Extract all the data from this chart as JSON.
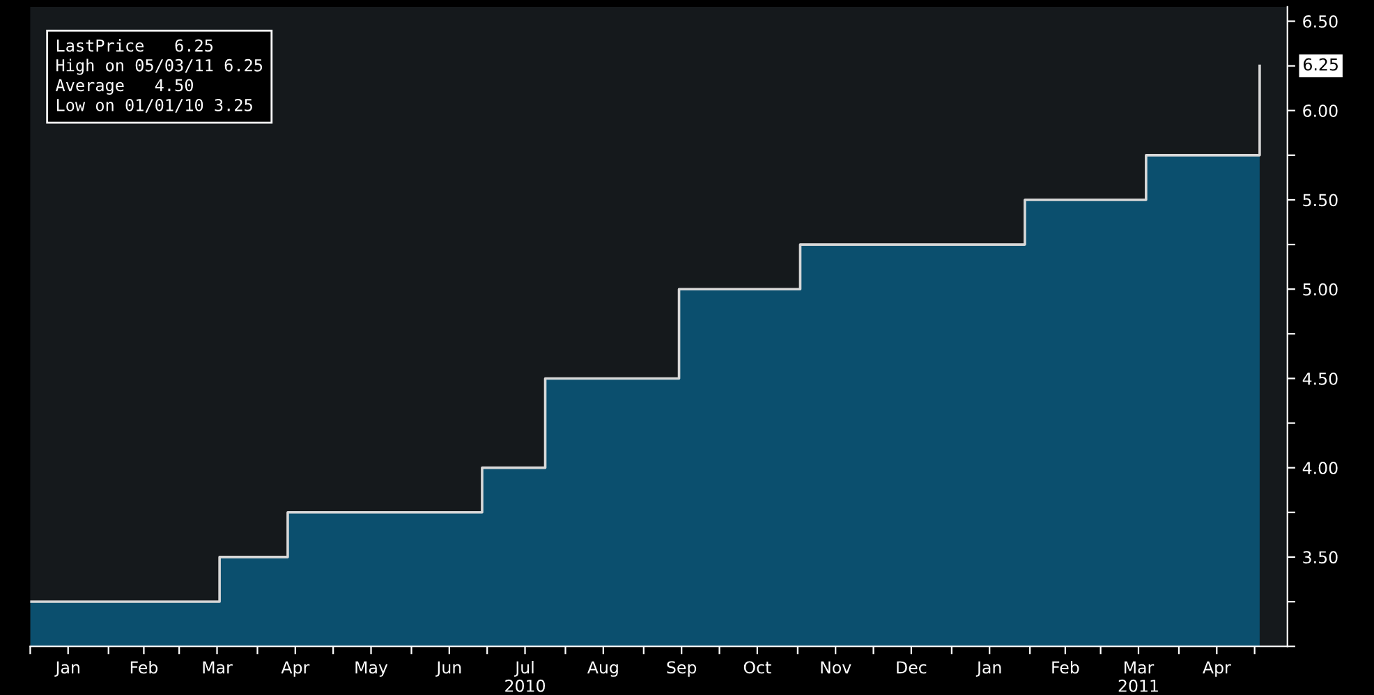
{
  "chart_data": {
    "type": "area",
    "x": [
      "2010-01-01",
      "2010-03-17",
      "2010-03-17",
      "2010-04-13",
      "2010-04-13",
      "2010-06-29",
      "2010-06-29",
      "2010-07-24",
      "2010-07-24",
      "2010-09-15",
      "2010-09-15",
      "2010-11-02",
      "2010-11-02",
      "2011-01-30",
      "2011-01-30",
      "2011-03-19",
      "2011-03-19",
      "2011-05-03",
      "2011-05-03"
    ],
    "series": [
      {
        "color": "#d8d8d8",
        "values": [
          3.25,
          3.25,
          3.5,
          3.5,
          3.75,
          3.75,
          4.0,
          4.0,
          4.5,
          4.5,
          5.0,
          5.0,
          5.25,
          5.25,
          5.5,
          5.5,
          5.75,
          5.75,
          6.25
        ]
      }
    ],
    "xlim": [
      "2010-01-01",
      "2011-05-14"
    ],
    "xticks": [
      {
        "value": "2010-01-01",
        "label": null
      },
      {
        "value": "2010-01-16",
        "label": "Jan"
      },
      {
        "value": "2010-02-01",
        "label": null
      },
      {
        "value": "2010-02-15",
        "label": "Feb"
      },
      {
        "value": "2010-03-01",
        "label": null
      },
      {
        "value": "2010-03-16",
        "label": "Mar"
      },
      {
        "value": "2010-04-01",
        "label": null
      },
      {
        "value": "2010-04-16",
        "label": "Apr"
      },
      {
        "value": "2010-05-01",
        "label": null
      },
      {
        "value": "2010-05-16",
        "label": "May"
      },
      {
        "value": "2010-06-01",
        "label": null
      },
      {
        "value": "2010-06-16",
        "label": "Jun"
      },
      {
        "value": "2010-07-01",
        "label": null
      },
      {
        "value": "2010-07-16",
        "label": "Jul\n2010"
      },
      {
        "value": "2010-08-01",
        "label": null
      },
      {
        "value": "2010-08-16",
        "label": "Aug"
      },
      {
        "value": "2010-09-01",
        "label": null
      },
      {
        "value": "2010-09-16",
        "label": "Sep"
      },
      {
        "value": "2010-10-01",
        "label": null
      },
      {
        "value": "2010-10-16",
        "label": "Oct"
      },
      {
        "value": "2010-11-01",
        "label": null
      },
      {
        "value": "2010-11-16",
        "label": "Nov"
      },
      {
        "value": "2010-12-01",
        "label": null
      },
      {
        "value": "2010-12-16",
        "label": "Dec"
      },
      {
        "value": "2011-01-01",
        "label": null
      },
      {
        "value": "2011-01-16",
        "label": "Jan"
      },
      {
        "value": "2011-02-01",
        "label": null
      },
      {
        "value": "2011-02-15",
        "label": "Feb"
      },
      {
        "value": "2011-03-01",
        "label": null
      },
      {
        "value": "2011-03-16",
        "label": "Mar\n2011"
      },
      {
        "value": "2011-04-01",
        "label": null
      },
      {
        "value": "2011-04-16",
        "label": "Apr"
      },
      {
        "value": "2011-05-01",
        "label": null
      }
    ],
    "ylim": [
      3.0,
      6.58
    ],
    "yticks": [
      {
        "value": 3.0,
        "label": null
      },
      {
        "value": 3.25,
        "label": null
      },
      {
        "value": 3.5,
        "label": "3.50"
      },
      {
        "value": 3.75,
        "label": null
      },
      {
        "value": 4.0,
        "label": "4.00"
      },
      {
        "value": 4.25,
        "label": null
      },
      {
        "value": 4.5,
        "label": "4.50"
      },
      {
        "value": 4.75,
        "label": null
      },
      {
        "value": 5.0,
        "label": "5.00"
      },
      {
        "value": 5.25,
        "label": null
      },
      {
        "value": 5.5,
        "label": "5.50"
      },
      {
        "value": 5.75,
        "label": null
      },
      {
        "value": 6.0,
        "label": "6.00"
      },
      {
        "value": 6.25,
        "label": null
      },
      {
        "value": 6.5,
        "label": "6.50"
      }
    ],
    "annotations": [
      "LastPrice   6.25",
      "High on 05/03/11 6.25",
      "Average   4.50",
      "Low on 01/01/10 3.25",
      {
        "text": "6.25",
        "x": "2011-05-03",
        "y": 6.25
      }
    ]
  }
}
